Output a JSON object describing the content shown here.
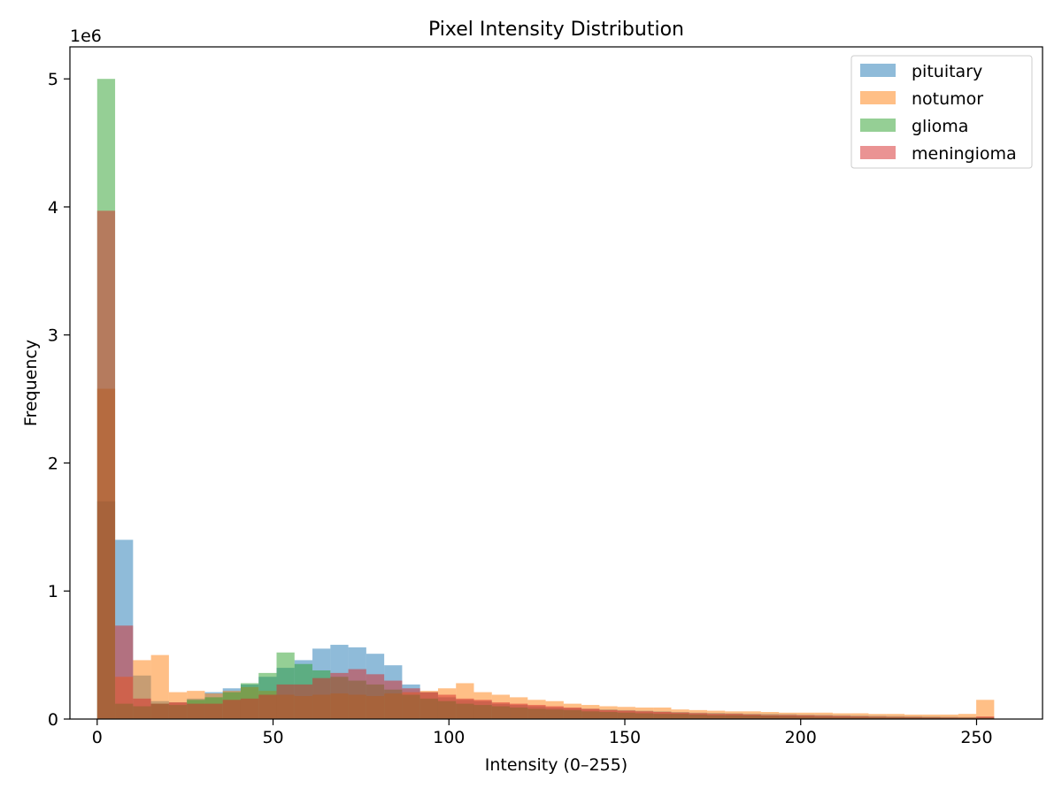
{
  "chart_data": {
    "type": "histogram",
    "title": "Pixel Intensity Distribution",
    "xlabel": "Intensity (0–255)",
    "ylabel": "Frequency",
    "y_offset_label": "1e6",
    "y_scale": 1000000,
    "xlim": [
      -7.75,
      268.75
    ],
    "ylim": [
      0,
      5.25
    ],
    "xticks": [
      0,
      50,
      100,
      150,
      200,
      250
    ],
    "yticks": [
      0,
      1,
      2,
      3,
      4,
      5
    ],
    "bin_start": 0,
    "bin_width": 5.1,
    "bar_alpha": 0.5,
    "legend_position": "top-right",
    "grid": false,
    "series": [
      {
        "name": "pituitary",
        "color": "#1f77b4",
        "values": [
          1.7,
          1.4,
          0.34,
          0.14,
          0.13,
          0.16,
          0.21,
          0.24,
          0.27,
          0.33,
          0.4,
          0.46,
          0.55,
          0.58,
          0.56,
          0.51,
          0.42,
          0.27,
          0.21,
          0.17,
          0.15,
          0.14,
          0.12,
          0.11,
          0.1,
          0.09,
          0.085,
          0.08,
          0.075,
          0.07,
          0.065,
          0.06,
          0.055,
          0.05,
          0.048,
          0.045,
          0.042,
          0.04,
          0.038,
          0.035,
          0.033,
          0.03,
          0.028,
          0.026,
          0.024,
          0.022,
          0.02,
          0.018,
          0.016,
          0.015
        ]
      },
      {
        "name": "notumor",
        "color": "#ff7f0e",
        "values": [
          2.58,
          0.33,
          0.46,
          0.5,
          0.21,
          0.22,
          0.2,
          0.22,
          0.25,
          0.22,
          0.19,
          0.18,
          0.19,
          0.2,
          0.19,
          0.18,
          0.2,
          0.21,
          0.22,
          0.24,
          0.28,
          0.21,
          0.19,
          0.17,
          0.15,
          0.14,
          0.12,
          0.11,
          0.1,
          0.095,
          0.09,
          0.09,
          0.075,
          0.07,
          0.065,
          0.06,
          0.06,
          0.055,
          0.05,
          0.05,
          0.05,
          0.045,
          0.045,
          0.04,
          0.04,
          0.035,
          0.035,
          0.035,
          0.04,
          0.15
        ]
      },
      {
        "name": "glioma",
        "color": "#2ca02c",
        "values": [
          5.0,
          0.12,
          0.1,
          0.12,
          0.11,
          0.15,
          0.17,
          0.21,
          0.28,
          0.36,
          0.52,
          0.43,
          0.38,
          0.33,
          0.3,
          0.27,
          0.23,
          0.19,
          0.16,
          0.14,
          0.12,
          0.11,
          0.1,
          0.09,
          0.08,
          0.075,
          0.07,
          0.06,
          0.055,
          0.05,
          0.045,
          0.04,
          0.04,
          0.035,
          0.03,
          0.03,
          0.028,
          0.025,
          0.023,
          0.02,
          0.018,
          0.016,
          0.015,
          0.014,
          0.013,
          0.012,
          0.011,
          0.01,
          0.01,
          0.01
        ]
      },
      {
        "name": "meningioma",
        "color": "#d62728",
        "values": [
          3.97,
          0.73,
          0.16,
          0.12,
          0.13,
          0.12,
          0.12,
          0.15,
          0.16,
          0.19,
          0.27,
          0.27,
          0.32,
          0.36,
          0.39,
          0.35,
          0.3,
          0.24,
          0.21,
          0.19,
          0.16,
          0.15,
          0.13,
          0.12,
          0.11,
          0.1,
          0.09,
          0.08,
          0.07,
          0.065,
          0.06,
          0.055,
          0.05,
          0.045,
          0.04,
          0.04,
          0.035,
          0.03,
          0.03,
          0.028,
          0.025,
          0.023,
          0.02,
          0.018,
          0.016,
          0.015,
          0.013,
          0.012,
          0.011,
          0.02
        ]
      }
    ]
  }
}
